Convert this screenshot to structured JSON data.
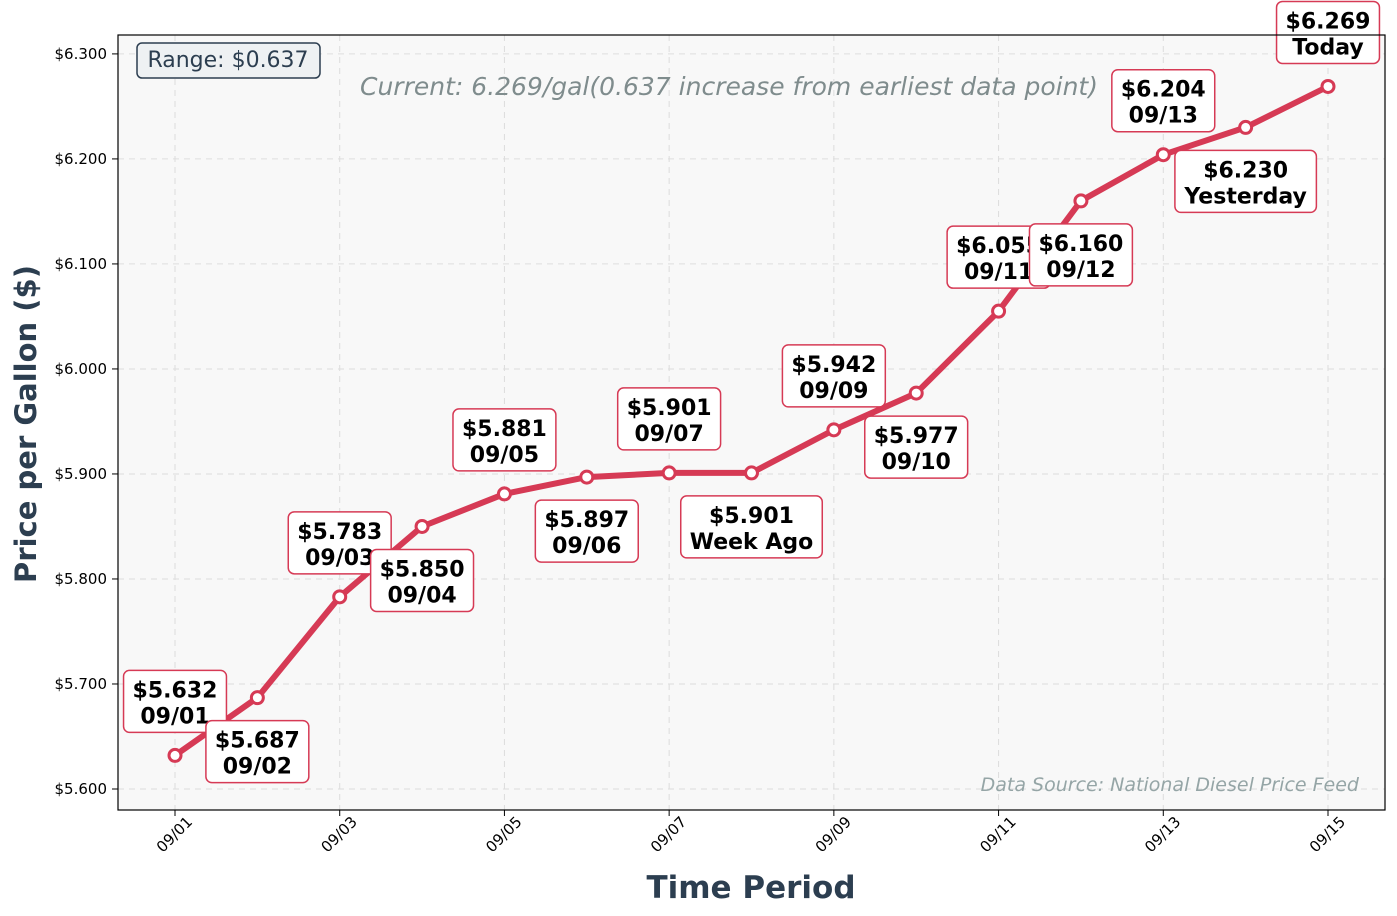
{
  "chart_data": {
    "type": "line",
    "x": [
      "09/01",
      "09/02",
      "09/03",
      "09/04",
      "09/05",
      "09/06",
      "09/07",
      "09/08",
      "09/09",
      "09/10",
      "09/11",
      "09/12",
      "09/13",
      "09/14",
      "09/15"
    ],
    "values": [
      5.632,
      5.687,
      5.783,
      5.85,
      5.881,
      5.897,
      5.901,
      5.901,
      5.942,
      5.977,
      6.055,
      6.16,
      6.204,
      6.23,
      6.269
    ],
    "point_labels": [
      [
        "$5.632",
        "09/01"
      ],
      [
        "$5.687",
        "09/02"
      ],
      [
        "$5.783",
        "09/03"
      ],
      [
        "$5.850",
        "09/04"
      ],
      [
        "$5.881",
        "09/05"
      ],
      [
        "$5.897",
        "09/06"
      ],
      [
        "$5.901",
        "09/07"
      ],
      [
        "$5.901",
        "Week Ago"
      ],
      [
        "$5.942",
        "09/09"
      ],
      [
        "$5.977",
        "09/10"
      ],
      [
        "$6.055",
        "09/11"
      ],
      [
        "$6.160",
        "09/12"
      ],
      [
        "$6.204",
        "09/13"
      ],
      [
        "$6.230",
        "Yesterday"
      ],
      [
        "$6.269",
        "Today"
      ]
    ],
    "label_positions": [
      "above",
      "below",
      "above",
      "below",
      "above",
      "below",
      "above",
      "below",
      "above",
      "below",
      "above",
      "below",
      "above",
      "below",
      "above"
    ],
    "x_tick_labels": [
      "09/01",
      "09/03",
      "09/05",
      "09/07",
      "09/09",
      "09/11",
      "09/13",
      "09/15"
    ],
    "y_tick_labels": [
      "$5.600",
      "$5.700",
      "$5.800",
      "$5.900",
      "$6.000",
      "$6.100",
      "$6.200",
      "$6.300"
    ],
    "y_ticks": [
      5.6,
      5.7,
      5.8,
      5.9,
      6.0,
      6.1,
      6.2,
      6.3
    ],
    "ylim": [
      5.58,
      6.318
    ],
    "xlabel": "Time Period",
    "ylabel": "Price per Gallon ($)",
    "subtitle": "Current: 6.269/gal(0.637 increase from earliest data point)",
    "range_box": "Range: $0.637",
    "source_note": "Data Source: National Diesel Price Feed",
    "grid": true,
    "colors": {
      "line": "#d63a55",
      "marker_fill": "#ffffff",
      "plot_bg": "#f8f8f8",
      "label_border": "#d63a55",
      "axis_title": "#2c3e50"
    }
  }
}
